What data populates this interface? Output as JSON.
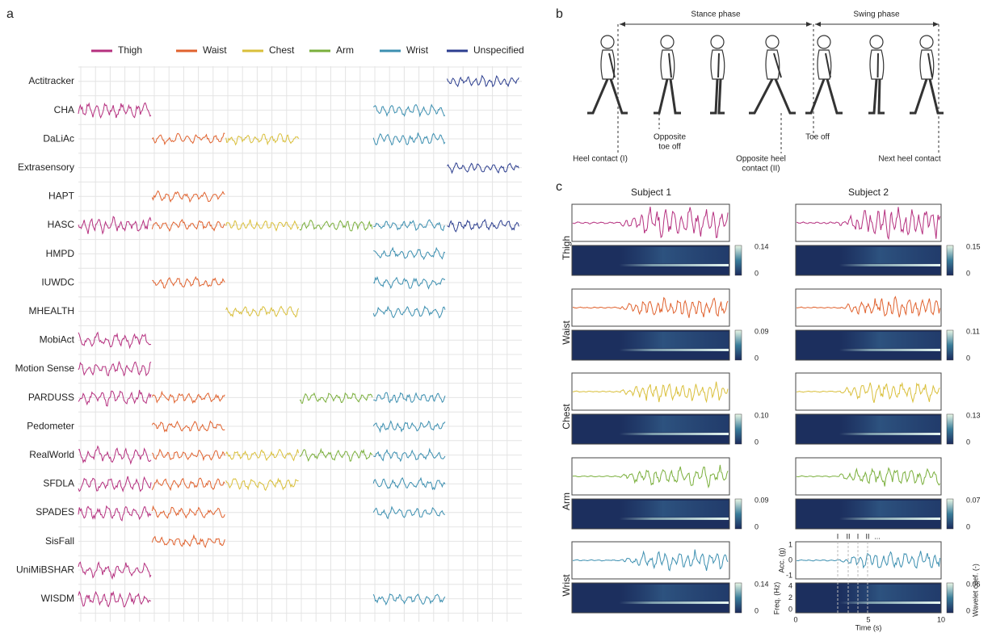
{
  "panel_a": {
    "label": "a",
    "legend": [
      {
        "name": "Thigh",
        "color": "#b5307f"
      },
      {
        "name": "Waist",
        "color": "#e0622e"
      },
      {
        "name": "Chest",
        "color": "#d9bf3a"
      },
      {
        "name": "Arm",
        "color": "#7aaf3c"
      },
      {
        "name": "Wrist",
        "color": "#3c8fb0"
      },
      {
        "name": "Unspecified",
        "color": "#2c3e8f"
      }
    ],
    "datasets": [
      {
        "name": "Actitracker",
        "sensors": [
          "Unspecified"
        ]
      },
      {
        "name": "CHA",
        "sensors": [
          "Thigh",
          "Wrist"
        ]
      },
      {
        "name": "DaLiAc",
        "sensors": [
          "Waist",
          "Chest",
          "Wrist"
        ]
      },
      {
        "name": "Extrasensory",
        "sensors": [
          "Unspecified"
        ]
      },
      {
        "name": "HAPT",
        "sensors": [
          "Waist"
        ]
      },
      {
        "name": "HASC",
        "sensors": [
          "Thigh",
          "Waist",
          "Chest",
          "Arm",
          "Wrist",
          "Unspecified"
        ]
      },
      {
        "name": "HMPD",
        "sensors": [
          "Wrist"
        ]
      },
      {
        "name": "IUWDC",
        "sensors": [
          "Waist",
          "Wrist"
        ]
      },
      {
        "name": "MHEALTH",
        "sensors": [
          "Chest",
          "Wrist"
        ]
      },
      {
        "name": "MobiAct",
        "sensors": [
          "Thigh"
        ]
      },
      {
        "name": "Motion Sense",
        "sensors": [
          "Thigh"
        ]
      },
      {
        "name": "PARDUSS",
        "sensors": [
          "Thigh",
          "Waist",
          "Arm",
          "Wrist"
        ]
      },
      {
        "name": "Pedometer",
        "sensors": [
          "Waist",
          "Wrist"
        ]
      },
      {
        "name": "RealWorld",
        "sensors": [
          "Thigh",
          "Waist",
          "Chest",
          "Arm",
          "Wrist"
        ]
      },
      {
        "name": "SFDLA",
        "sensors": [
          "Thigh",
          "Waist",
          "Chest",
          "Wrist"
        ]
      },
      {
        "name": "SPADES",
        "sensors": [
          "Thigh",
          "Waist",
          "Wrist"
        ]
      },
      {
        "name": "SisFall",
        "sensors": [
          "Waist"
        ]
      },
      {
        "name": "UniMiBSHAR",
        "sensors": [
          "Thigh"
        ]
      },
      {
        "name": "WISDM",
        "sensors": [
          "Thigh",
          "Wrist"
        ]
      }
    ]
  },
  "panel_b": {
    "label": "b",
    "stance": "Stance phase",
    "swing": "Swing phase",
    "heel_contact": [
      "Heel contact (I)"
    ],
    "opposite_toe_off": [
      "Opposite",
      "toe off"
    ],
    "opposite_heel_contact": [
      "Opposite heel",
      "contact (II)"
    ],
    "toe_off": [
      "Toe off"
    ],
    "next_heel_contact": [
      "Next heel contact"
    ]
  },
  "panel_c": {
    "label": "c",
    "subjects": [
      "Subject 1",
      "Subject 2"
    ],
    "rows": [
      {
        "name": "Thigh",
        "colorbar_max": [
          "0.14",
          "0.15"
        ]
      },
      {
        "name": "Waist",
        "colorbar_max": [
          "0.09",
          "0.11"
        ]
      },
      {
        "name": "Chest",
        "colorbar_max": [
          "0.10",
          "0.13"
        ]
      },
      {
        "name": "Arm",
        "colorbar_max": [
          "0.09",
          "0.07"
        ]
      },
      {
        "name": "Wrist",
        "colorbar_max": [
          "0.14",
          "0.06"
        ]
      }
    ],
    "colorbar_min": "0",
    "acc_label": "Acc. (g)",
    "freq_label": "Freq. (Hz)",
    "time_label": "Time (s)",
    "colorbar_label": "Wavelet coef. (-)",
    "acc_ticks": [
      "1",
      "0",
      "-1"
    ],
    "freq_ticks": [
      "4",
      "2",
      "0"
    ],
    "time_ticks": [
      "0",
      "5",
      "10"
    ],
    "step_markers": [
      "I",
      "II",
      "I",
      "II",
      "..."
    ]
  }
}
